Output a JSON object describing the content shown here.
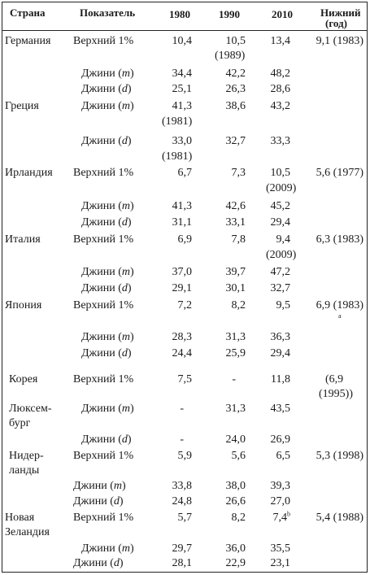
{
  "header": {
    "country": "Страна",
    "indicator": "Показатель",
    "y1980": "1980",
    "y1990": "1990",
    "y2010": "2010",
    "lower": "Нижний",
    "lower_sub": "(год)"
  },
  "labels": {
    "top1": "Верхний 1%",
    "gini_m_prefix": "Джини (",
    "gini_m_var": "m",
    "gini_d_var": "d",
    "suffix": ")"
  },
  "rows": {
    "de_country": "Германия",
    "de_top_1980": "10,4",
    "de_top_1990": "10,5",
    "de_top_1990_note": "(1989)",
    "de_top_2010": "13,4",
    "de_lower": "9,1 (1983)",
    "de_gm_1980": "34,4",
    "de_gm_1990": "42,2",
    "de_gm_2010": "48,2",
    "de_gd_1980": "25,1",
    "de_gd_1990": "26,3",
    "de_gd_2010": "28,6",
    "gr_country": "Греция",
    "gr_gm_1980": "41,3",
    "gr_gm_1980_note": "(1981)",
    "gr_gm_1990": "38,6",
    "gr_gm_2010": "43,2",
    "gr_gd_1980": "33,0",
    "gr_gd_1980_note": "(1981)",
    "gr_gd_1990": "32,7",
    "gr_gd_2010": "33,3",
    "ie_country": "Ирландия",
    "ie_top_1980": "6,7",
    "ie_top_1990": "7,3",
    "ie_top_2010": "10,5",
    "ie_top_2010_note": "(2009)",
    "ie_lower": "5,6 (1977)",
    "ie_gm_1980": "41,3",
    "ie_gm_1990": "42,6",
    "ie_gm_2010": "45,2",
    "ie_gd_1980": "31,1",
    "ie_gd_1990": "33,1",
    "ie_gd_2010": "29,4",
    "it_country": "Италия",
    "it_top_1980": "6,9",
    "it_top_1990": "7,8",
    "it_top_2010": "9,4",
    "it_top_2010_note": "(2009)",
    "it_lower": "6,3 (1983)",
    "it_gm_1980": "37,0",
    "it_gm_1990": "39,7",
    "it_gm_2010": "47,2",
    "it_gd_1980": "29,1",
    "it_gd_1990": "30,1",
    "it_gd_2010": "32,7",
    "jp_country": "Япония",
    "jp_top_1980": "7,2",
    "jp_top_1990": "8,2",
    "jp_top_2010": "9,5",
    "jp_lower": "6,9 (1983)",
    "jp_lower_note": "a",
    "jp_gm_1980": "28,3",
    "jp_gm_1990": "31,3",
    "jp_gm_2010": "36,3",
    "jp_gd_1980": "24,4",
    "jp_gd_1990": "25,9",
    "jp_gd_2010": "29,4",
    "kr_country": "Корея",
    "kr_top_1980": "7,5",
    "kr_top_1990": "-",
    "kr_top_2010": "11,8",
    "kr_lower": "(6,9",
    "kr_lower2": "(1995))",
    "lu_country1": "Люксем-",
    "lu_country2": "бург",
    "lu_gm_1980": "-",
    "lu_gm_1990": "31,3",
    "lu_gm_2010": "43,5",
    "lu_gd_1980": "-",
    "lu_gd_1990": "24,0",
    "lu_gd_2010": "26,9",
    "nl_country1": "Нидер-",
    "nl_country2": "ланды",
    "nl_top_1980": "5,9",
    "nl_top_1990": "5,6",
    "nl_top_2010": "6,5",
    "nl_lower": "5,3 (1998)",
    "nl_gm_1980": "33,8",
    "nl_gm_1990": "38,0",
    "nl_gm_2010": "39,3",
    "nl_gd_1980": "24,8",
    "nl_gd_1990": "26,6",
    "nl_gd_2010": "27,0",
    "nz_country1": "Новая",
    "nz_country2": "Зеландия",
    "nz_top_1980": "5,7",
    "nz_top_1990": "8,2",
    "nz_top_2010": "7,4",
    "nz_top_2010_sup": "b",
    "nz_lower": "5,4 (1988)",
    "nz_gm_1980": "29,7",
    "nz_gm_1990": "36,0",
    "nz_gm_2010": "35,5",
    "nz_gd_1980": "28,1",
    "nz_gd_1990": "22,9",
    "nz_gd_2010": "23,1"
  }
}
